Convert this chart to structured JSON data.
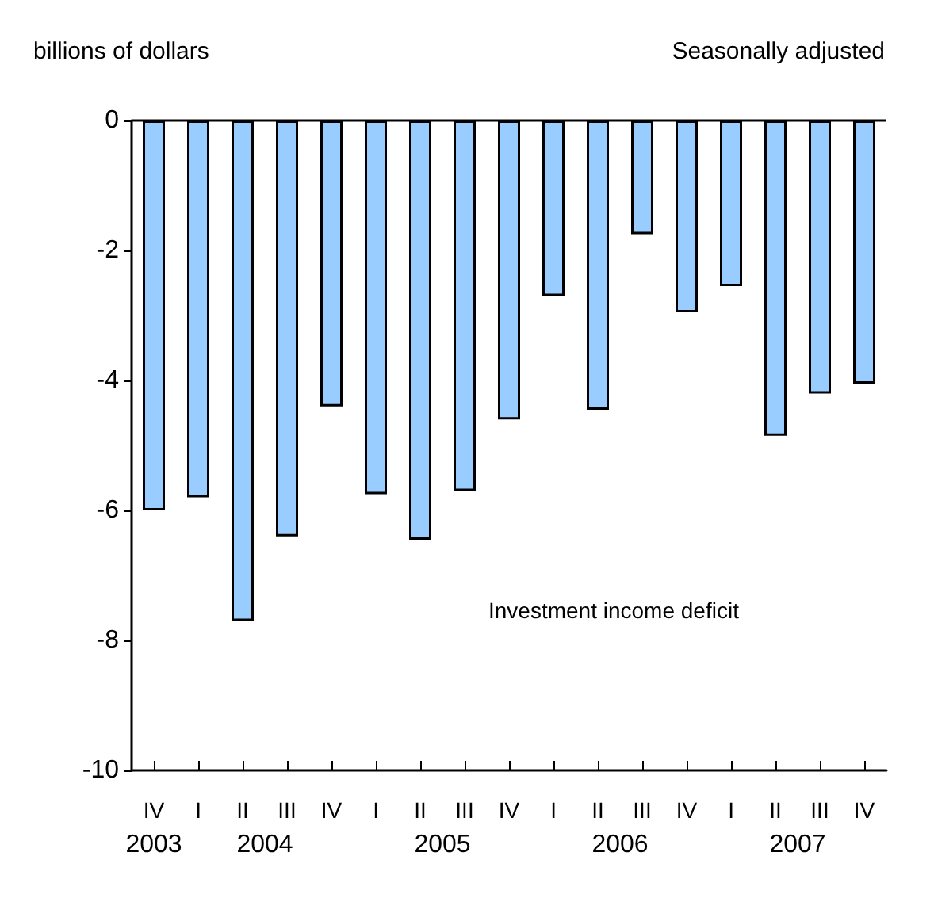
{
  "chart_data": {
    "type": "bar",
    "ylabel": "billions of dollars",
    "subtitle": "Seasonally adjusted",
    "annotations": [
      "Investment income deficit",
      "2003",
      "2004",
      "2005",
      "2006",
      "2007"
    ],
    "categories": [
      "IV",
      "I",
      "II",
      "III",
      "IV",
      "I",
      "II",
      "III",
      "IV",
      "I",
      "II",
      "III",
      "IV",
      "I",
      "II",
      "III",
      "IV"
    ],
    "series": [
      {
        "color": "#99ccff",
        "values": [
          -6.0,
          -5.8,
          -7.7,
          -6.4,
          -4.4,
          -5.75,
          -6.45,
          -5.7,
          -4.6,
          -2.7,
          -4.45,
          -1.75,
          -2.95,
          -2.55,
          -4.85,
          -4.2,
          -4.05
        ]
      }
    ],
    "ylim": [
      -10,
      0
    ],
    "yticks": [
      -10,
      -8,
      -6,
      -4,
      -2,
      0
    ],
    "grid": false,
    "ref_lines": [
      {
        "axis": "y",
        "value": 0
      }
    ]
  }
}
